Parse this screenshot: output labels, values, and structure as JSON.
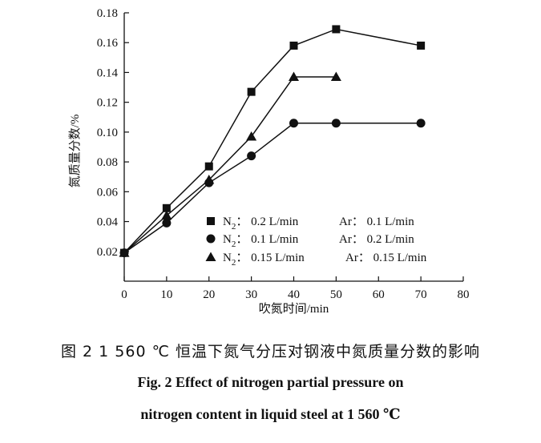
{
  "chart_data": {
    "type": "line",
    "xlabel": "吹氮时间/min",
    "ylabel": "氮质量分数/%",
    "xlim": [
      0,
      80
    ],
    "ylim": [
      0,
      0.18
    ],
    "xticks": [
      "0",
      "10",
      "20",
      "30",
      "40",
      "50",
      "60",
      "70",
      "80"
    ],
    "yticks": [
      "0.02",
      "0.04",
      "0.06",
      "0.08",
      "0.10",
      "0.12",
      "0.14",
      "0.16",
      "0.18"
    ],
    "grid": false,
    "legend_position": "bottom-right",
    "series": [
      {
        "name": "N2: 0.2 L/min Ar: 0.1 L/min",
        "label_parts": {
          "gas1": "N",
          "sub": "2",
          "flow1": "0.2 L/min",
          "gas2": "Ar",
          "flow2": "0.1 L/min"
        },
        "marker": "square",
        "x": [
          0,
          10,
          20,
          30,
          40,
          50,
          70
        ],
        "y": [
          0.019,
          0.049,
          0.077,
          0.127,
          0.158,
          0.169,
          0.158
        ]
      },
      {
        "name": "N2: 0.1 L/min Ar: 0.2 L/min",
        "label_parts": {
          "gas1": "N",
          "sub": "2",
          "flow1": "0.1 L/min",
          "gas2": "Ar",
          "flow2": "0.2 L/min"
        },
        "marker": "circle",
        "x": [
          0,
          10,
          20,
          30,
          40,
          50,
          70
        ],
        "y": [
          0.019,
          0.039,
          0.066,
          0.084,
          0.106,
          0.106,
          0.106
        ]
      },
      {
        "name": "N2: 0.15 L/min Ar: 0.15 L/min",
        "label_parts": {
          "gas1": "N",
          "sub": "2",
          "flow1": "0.15 L/min",
          "gas2": "Ar",
          "flow2": "0.15 L/min"
        },
        "marker": "triangle",
        "x": [
          0,
          10,
          20,
          30,
          40,
          50
        ],
        "y": [
          0.019,
          0.044,
          0.068,
          0.097,
          0.137,
          0.137
        ]
      }
    ]
  },
  "caption": {
    "cn": "图 2   1 560 ℃ 恒温下氮气分压对钢液中氮质量分数的影响",
    "en_line1": "Fig. 2    Effect of nitrogen partial pressure on",
    "en_line2": "nitrogen content in liquid steel at 1 560 ℃"
  }
}
